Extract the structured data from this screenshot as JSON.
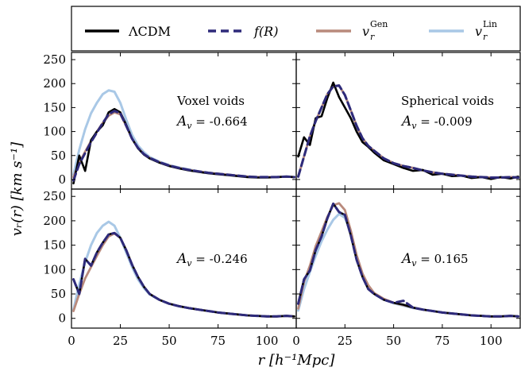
{
  "legend": {
    "items": [
      {
        "label": "ΛCDM",
        "color": "#000000",
        "dash": false
      },
      {
        "label": "f(R)",
        "color": "#2e2a7a",
        "dash": true
      },
      {
        "label": "v",
        "sup": "Gen",
        "sub": "r",
        "color": "#b98a7c",
        "dash": false
      },
      {
        "label": "v",
        "sup": "Lin",
        "sub": "r",
        "color": "#a9c8e6",
        "dash": false
      }
    ]
  },
  "axes": {
    "xlabel": "r [h⁻¹Mpc]",
    "ylabel": "vᵣ(r) [km s⁻¹]"
  },
  "chart_data": [
    {
      "type": "line",
      "panel": "top-left",
      "annotation_title": "Voxel voids",
      "annotation_value": "A_v = -0.664",
      "xlim": [
        0,
        115
      ],
      "ylim": [
        -20,
        265
      ],
      "xticks": [
        0,
        25,
        50,
        75,
        100
      ],
      "yticks": [
        0,
        50,
        100,
        150,
        200,
        250
      ],
      "x": [
        1,
        4,
        7,
        10,
        13,
        16,
        19,
        22,
        25,
        28,
        31,
        34,
        37,
        40,
        45,
        50,
        55,
        60,
        65,
        70,
        75,
        80,
        85,
        90,
        95,
        100,
        105,
        110,
        114
      ],
      "series": [
        {
          "name": "ΛCDM",
          "values": [
            -8,
            50,
            18,
            82,
            100,
            113,
            140,
            147,
            140,
            114,
            85,
            65,
            52,
            44,
            35,
            28,
            23,
            19,
            16,
            13,
            11,
            9,
            7,
            5,
            4,
            4,
            5,
            6,
            5
          ]
        },
        {
          "name": "f(R)",
          "values": [
            -2,
            32,
            55,
            78,
            98,
            118,
            136,
            143,
            138,
            112,
            85,
            66,
            53,
            45,
            36,
            29,
            24,
            20,
            17,
            14,
            12,
            10,
            8,
            6,
            5,
            5,
            5,
            6,
            5
          ]
        },
        {
          "name": "v_r^Gen",
          "values": [
            5,
            35,
            58,
            80,
            100,
            118,
            133,
            140,
            136,
            112,
            85,
            66,
            53,
            45,
            36,
            29,
            24,
            20,
            17,
            14,
            12,
            10,
            8,
            6,
            5,
            5,
            5,
            6,
            5
          ]
        },
        {
          "name": "v_r^Lin",
          "values": [
            10,
            62,
            105,
            138,
            160,
            178,
            186,
            183,
            160,
            125,
            93,
            71,
            57,
            47,
            37,
            30,
            25,
            21,
            17,
            14,
            12,
            10,
            8,
            6,
            5,
            5,
            5,
            6,
            5
          ]
        }
      ]
    },
    {
      "type": "line",
      "panel": "top-right",
      "annotation_title": "Spherical voids",
      "annotation_value": "A_v = -0.009",
      "xlim": [
        0,
        115
      ],
      "ylim": [
        -20,
        265
      ],
      "xticks": [
        0,
        25,
        50,
        75,
        100
      ],
      "yticks": [
        0,
        50,
        100,
        150,
        200,
        250
      ],
      "x": [
        1,
        4,
        7,
        10,
        13,
        16,
        19,
        22,
        25,
        28,
        31,
        34,
        37,
        40,
        45,
        50,
        55,
        60,
        65,
        70,
        75,
        80,
        85,
        90,
        95,
        100,
        105,
        110,
        114
      ],
      "series": [
        {
          "name": "ΛCDM",
          "values": [
            48,
            88,
            72,
            128,
            132,
            170,
            202,
            172,
            150,
            128,
            100,
            78,
            68,
            56,
            40,
            32,
            24,
            18,
            20,
            10,
            12,
            7,
            8,
            3,
            5,
            1,
            5,
            2,
            6
          ]
        },
        {
          "name": "f(R)",
          "values": [
            6,
            48,
            90,
            122,
            150,
            178,
            194,
            196,
            176,
            144,
            112,
            86,
            70,
            60,
            44,
            34,
            28,
            24,
            19,
            15,
            12,
            10,
            8,
            6,
            5,
            4,
            4,
            5,
            4
          ]
        },
        {
          "name": "v_r^Gen",
          "values": [
            6,
            48,
            90,
            122,
            150,
            178,
            194,
            196,
            176,
            144,
            112,
            86,
            70,
            60,
            44,
            34,
            28,
            24,
            19,
            15,
            12,
            10,
            8,
            6,
            5,
            4,
            4,
            5,
            4
          ]
        },
        {
          "name": "v_r^Lin",
          "values": [
            6,
            48,
            90,
            122,
            150,
            178,
            194,
            196,
            176,
            144,
            112,
            86,
            70,
            60,
            44,
            34,
            28,
            24,
            19,
            15,
            12,
            10,
            8,
            6,
            5,
            4,
            4,
            5,
            4
          ]
        }
      ]
    },
    {
      "type": "line",
      "panel": "bottom-left",
      "annotation_title": "",
      "annotation_value": "A_v = -0.246",
      "xlim": [
        0,
        115
      ],
      "ylim": [
        -20,
        265
      ],
      "xticks": [
        0,
        25,
        50,
        75,
        100
      ],
      "yticks": [
        0,
        50,
        100,
        150,
        200,
        250
      ],
      "x": [
        1,
        4,
        7,
        10,
        13,
        16,
        19,
        22,
        25,
        28,
        31,
        34,
        37,
        40,
        45,
        50,
        55,
        60,
        65,
        70,
        75,
        80,
        85,
        90,
        95,
        100,
        105,
        110,
        114
      ],
      "series": [
        {
          "name": "ΛCDM",
          "values": [
            80,
            50,
            122,
            108,
            135,
            155,
            172,
            175,
            165,
            140,
            110,
            85,
            65,
            50,
            38,
            30,
            25,
            21,
            18,
            15,
            12,
            10,
            8,
            6,
            5,
            4,
            4,
            5,
            4
          ]
        },
        {
          "name": "f(R)",
          "values": [
            80,
            50,
            122,
            108,
            135,
            155,
            172,
            175,
            165,
            140,
            110,
            85,
            65,
            50,
            38,
            30,
            25,
            21,
            18,
            15,
            12,
            10,
            8,
            6,
            5,
            4,
            4,
            5,
            4
          ]
        },
        {
          "name": "v_r^Gen",
          "values": [
            15,
            50,
            82,
            105,
            128,
            150,
            168,
            174,
            165,
            140,
            110,
            85,
            65,
            50,
            38,
            30,
            25,
            21,
            18,
            15,
            12,
            10,
            8,
            6,
            5,
            4,
            4,
            5,
            4
          ]
        },
        {
          "name": "v_r^Lin",
          "values": [
            18,
            70,
            115,
            150,
            175,
            190,
            198,
            190,
            165,
            135,
            105,
            80,
            62,
            49,
            38,
            30,
            25,
            21,
            18,
            15,
            12,
            10,
            8,
            6,
            5,
            4,
            4,
            5,
            4
          ]
        }
      ]
    },
    {
      "type": "line",
      "panel": "bottom-right",
      "annotation_title": "",
      "annotation_value": "A_v = 0.165",
      "xlim": [
        0,
        115
      ],
      "ylim": [
        -20,
        265
      ],
      "xticks": [
        0,
        25,
        50,
        75,
        100
      ],
      "yticks": [
        0,
        50,
        100,
        150,
        200,
        250
      ],
      "x": [
        1,
        4,
        7,
        10,
        13,
        16,
        19,
        22,
        25,
        28,
        31,
        34,
        37,
        40,
        45,
        50,
        55,
        60,
        65,
        70,
        75,
        80,
        85,
        90,
        95,
        100,
        105,
        110,
        114
      ],
      "series": [
        {
          "name": "ΛCDM",
          "values": [
            30,
            80,
            98,
            140,
            168,
            205,
            235,
            218,
            212,
            170,
            120,
            85,
            60,
            50,
            38,
            32,
            28,
            22,
            18,
            15,
            12,
            10,
            8,
            6,
            5,
            4,
            4,
            5,
            4
          ]
        },
        {
          "name": "f(R)",
          "values": [
            30,
            80,
            98,
            140,
            168,
            205,
            235,
            218,
            212,
            170,
            120,
            85,
            60,
            50,
            38,
            32,
            36,
            22,
            18,
            15,
            12,
            10,
            8,
            6,
            5,
            4,
            4,
            5,
            4
          ]
        },
        {
          "name": "v_r^Gen",
          "values": [
            20,
            75,
            108,
            148,
            178,
            208,
            232,
            236,
            222,
            180,
            130,
            92,
            68,
            52,
            40,
            32,
            27,
            22,
            18,
            15,
            12,
            10,
            8,
            6,
            5,
            4,
            4,
            5,
            4
          ]
        },
        {
          "name": "v_r^Lin",
          "values": [
            16,
            60,
            95,
            128,
            158,
            182,
            202,
            214,
            206,
            175,
            128,
            90,
            66,
            51,
            39,
            31,
            26,
            21,
            18,
            15,
            12,
            10,
            8,
            6,
            5,
            4,
            4,
            5,
            4
          ]
        }
      ]
    }
  ]
}
